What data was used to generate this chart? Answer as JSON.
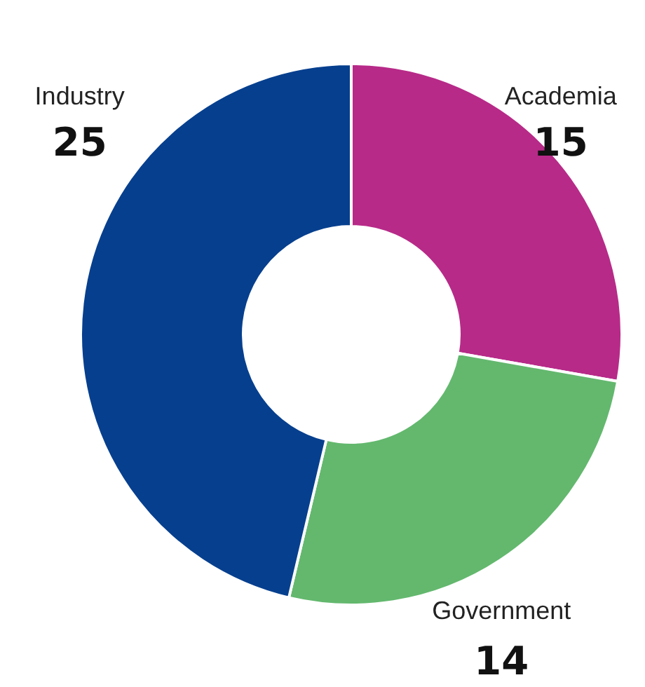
{
  "chart_data": {
    "type": "donut",
    "categories": [
      "Academia",
      "Government",
      "Industry"
    ],
    "values": [
      15,
      14,
      25
    ],
    "colors": [
      "#b72a88",
      "#63b86e",
      "#063f8e"
    ],
    "data_labels": true
  }
}
